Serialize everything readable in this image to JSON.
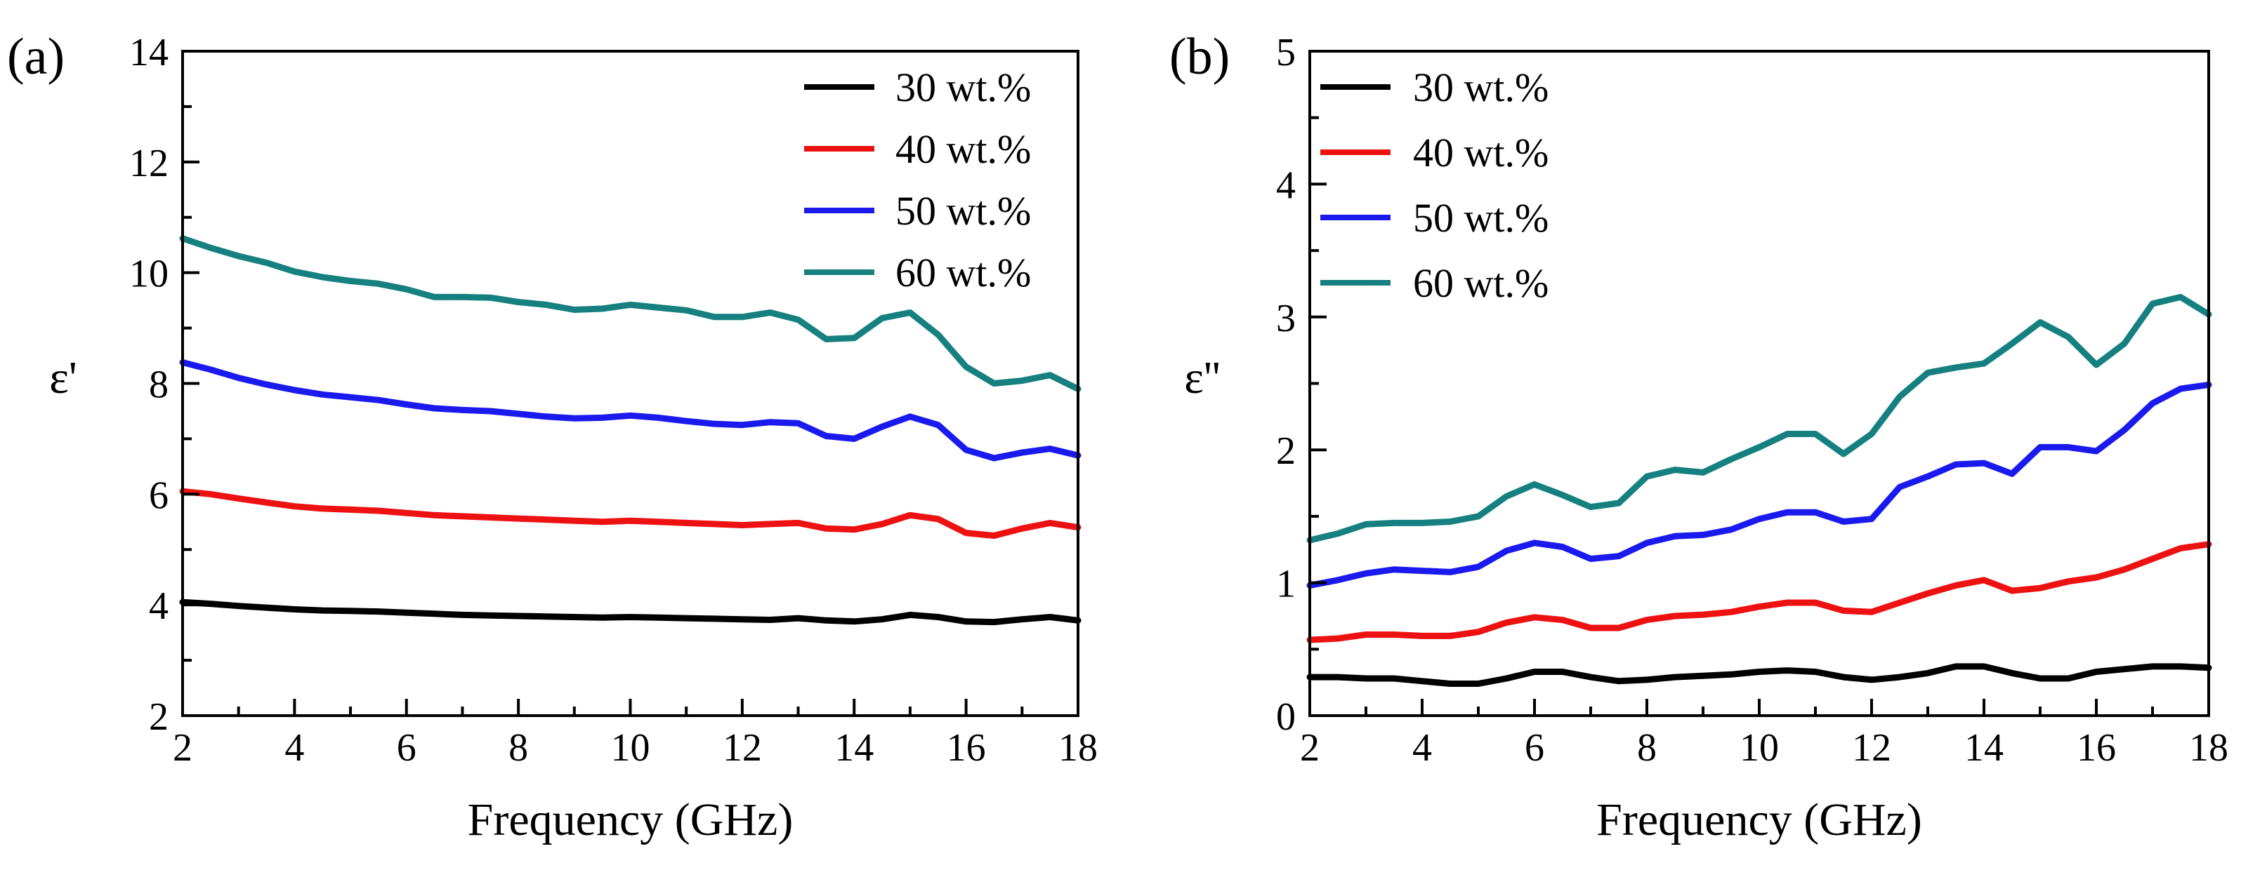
{
  "figure": {
    "colors": {
      "30 wt.%": "#000000",
      "40 wt.%": "#ee1111",
      "50 wt.%": "#1a1aee",
      "60 wt.%": "#168080"
    }
  },
  "chart_data": [
    {
      "type": "line",
      "panel_label": "(a)",
      "title": "",
      "xlabel": "Frequency (GHz)",
      "ylabel": "ε'",
      "xlim": [
        2,
        18
      ],
      "ylim": [
        2,
        14
      ],
      "xticks": [
        2,
        4,
        6,
        8,
        10,
        12,
        14,
        16,
        18
      ],
      "yticks": [
        2,
        4,
        6,
        8,
        10,
        12,
        14
      ],
      "legend_position": "top-right",
      "series": [
        {
          "name": "30 wt.%",
          "x": [
            2,
            2.5,
            3,
            3.5,
            4,
            4.5,
            5,
            5.5,
            6,
            6.5,
            7,
            7.5,
            8,
            8.5,
            9,
            9.5,
            10,
            10.5,
            11,
            11.5,
            12,
            12.5,
            13,
            13.5,
            14,
            14.5,
            15,
            15.5,
            16,
            16.5,
            17,
            17.5,
            18
          ],
          "y": [
            4.05,
            4.02,
            3.98,
            3.95,
            3.92,
            3.9,
            3.89,
            3.88,
            3.86,
            3.84,
            3.82,
            3.81,
            3.8,
            3.79,
            3.78,
            3.77,
            3.78,
            3.77,
            3.76,
            3.75,
            3.74,
            3.73,
            3.76,
            3.72,
            3.7,
            3.74,
            3.82,
            3.78,
            3.7,
            3.69,
            3.74,
            3.78,
            3.72
          ]
        },
        {
          "name": "40 wt.%",
          "x": [
            2,
            2.5,
            3,
            3.5,
            4,
            4.5,
            5,
            5.5,
            6,
            6.5,
            7,
            7.5,
            8,
            8.5,
            9,
            9.5,
            10,
            10.5,
            11,
            11.5,
            12,
            12.5,
            13,
            13.5,
            14,
            14.5,
            15,
            15.5,
            16,
            16.5,
            17,
            17.5,
            18
          ],
          "y": [
            6.05,
            6.0,
            5.92,
            5.85,
            5.78,
            5.74,
            5.72,
            5.7,
            5.66,
            5.62,
            5.6,
            5.58,
            5.56,
            5.54,
            5.52,
            5.5,
            5.52,
            5.5,
            5.48,
            5.46,
            5.44,
            5.46,
            5.48,
            5.38,
            5.36,
            5.46,
            5.62,
            5.55,
            5.3,
            5.25,
            5.38,
            5.48,
            5.4
          ]
        },
        {
          "name": "50 wt.%",
          "x": [
            2,
            2.5,
            3,
            3.5,
            4,
            4.5,
            5,
            5.5,
            6,
            6.5,
            7,
            7.5,
            8,
            8.5,
            9,
            9.5,
            10,
            10.5,
            11,
            11.5,
            12,
            12.5,
            13,
            13.5,
            14,
            14.5,
            15,
            15.5,
            16,
            16.5,
            17,
            17.5,
            18
          ],
          "y": [
            8.38,
            8.25,
            8.1,
            7.98,
            7.88,
            7.8,
            7.75,
            7.7,
            7.62,
            7.55,
            7.52,
            7.5,
            7.45,
            7.4,
            7.37,
            7.38,
            7.42,
            7.38,
            7.32,
            7.27,
            7.25,
            7.3,
            7.28,
            7.05,
            7.0,
            7.22,
            7.4,
            7.25,
            6.8,
            6.65,
            6.75,
            6.82,
            6.7
          ]
        },
        {
          "name": "60 wt.%",
          "x": [
            2,
            2.5,
            3,
            3.5,
            4,
            4.5,
            5,
            5.5,
            6,
            6.5,
            7,
            7.5,
            8,
            8.5,
            9,
            9.5,
            10,
            10.5,
            11,
            11.5,
            12,
            12.5,
            13,
            13.5,
            14,
            14.5,
            15,
            15.5,
            16,
            16.5,
            17,
            17.5,
            18
          ],
          "y": [
            10.62,
            10.45,
            10.3,
            10.18,
            10.02,
            9.92,
            9.85,
            9.8,
            9.7,
            9.56,
            9.56,
            9.55,
            9.47,
            9.42,
            9.33,
            9.35,
            9.42,
            9.37,
            9.32,
            9.2,
            9.2,
            9.28,
            9.15,
            8.8,
            8.82,
            9.18,
            9.28,
            8.88,
            8.3,
            8.0,
            8.05,
            8.15,
            7.9
          ]
        }
      ]
    },
    {
      "type": "line",
      "panel_label": "(b)",
      "title": "",
      "xlabel": "Frequency (GHz)",
      "ylabel": "ε''",
      "xlim": [
        2,
        18
      ],
      "ylim": [
        0,
        5
      ],
      "xticks": [
        2,
        4,
        6,
        8,
        10,
        12,
        14,
        16,
        18
      ],
      "yticks": [
        0,
        1,
        2,
        3,
        4,
        5
      ],
      "legend_position": "top-left",
      "series": [
        {
          "name": "30 wt.%",
          "x": [
            2,
            2.5,
            3,
            3.5,
            4,
            4.5,
            5,
            5.5,
            6,
            6.5,
            7,
            7.5,
            8,
            8.5,
            9,
            9.5,
            10,
            10.5,
            11,
            11.5,
            12,
            12.5,
            13,
            13.5,
            14,
            14.5,
            15,
            15.5,
            16,
            16.5,
            17,
            17.5,
            18
          ],
          "y": [
            0.29,
            0.29,
            0.28,
            0.28,
            0.26,
            0.24,
            0.24,
            0.28,
            0.33,
            0.33,
            0.29,
            0.26,
            0.27,
            0.29,
            0.3,
            0.31,
            0.33,
            0.34,
            0.33,
            0.29,
            0.27,
            0.29,
            0.32,
            0.37,
            0.37,
            0.32,
            0.28,
            0.28,
            0.33,
            0.35,
            0.37,
            0.37,
            0.36
          ]
        },
        {
          "name": "40 wt.%",
          "x": [
            2,
            2.5,
            3,
            3.5,
            4,
            4.5,
            5,
            5.5,
            6,
            6.5,
            7,
            7.5,
            8,
            8.5,
            9,
            9.5,
            10,
            10.5,
            11,
            11.5,
            12,
            12.5,
            13,
            13.5,
            14,
            14.5,
            15,
            15.5,
            16,
            16.5,
            17,
            17.5,
            18
          ],
          "y": [
            0.57,
            0.58,
            0.61,
            0.61,
            0.6,
            0.6,
            0.63,
            0.7,
            0.74,
            0.72,
            0.66,
            0.66,
            0.72,
            0.75,
            0.76,
            0.78,
            0.82,
            0.85,
            0.85,
            0.79,
            0.78,
            0.85,
            0.92,
            0.98,
            1.02,
            0.94,
            0.96,
            1.01,
            1.04,
            1.1,
            1.18,
            1.26,
            1.29
          ]
        },
        {
          "name": "50 wt.%",
          "x": [
            2,
            2.5,
            3,
            3.5,
            4,
            4.5,
            5,
            5.5,
            6,
            6.5,
            7,
            7.5,
            8,
            8.5,
            9,
            9.5,
            10,
            10.5,
            11,
            11.5,
            12,
            12.5,
            13,
            13.5,
            14,
            14.5,
            15,
            15.5,
            16,
            16.5,
            17,
            17.5,
            18
          ],
          "y": [
            0.98,
            1.02,
            1.07,
            1.1,
            1.09,
            1.08,
            1.12,
            1.24,
            1.3,
            1.27,
            1.18,
            1.2,
            1.3,
            1.35,
            1.36,
            1.4,
            1.48,
            1.53,
            1.53,
            1.46,
            1.48,
            1.72,
            1.8,
            1.89,
            1.9,
            1.82,
            2.02,
            2.02,
            1.99,
            2.15,
            2.35,
            2.46,
            2.49
          ]
        },
        {
          "name": "60 wt.%",
          "x": [
            2,
            2.5,
            3,
            3.5,
            4,
            4.5,
            5,
            5.5,
            6,
            6.5,
            7,
            7.5,
            8,
            8.5,
            9,
            9.5,
            10,
            10.5,
            11,
            11.5,
            12,
            12.5,
            13,
            13.5,
            14,
            14.5,
            15,
            15.5,
            16,
            16.5,
            17,
            17.5,
            18
          ],
          "y": [
            1.32,
            1.37,
            1.44,
            1.45,
            1.45,
            1.46,
            1.5,
            1.65,
            1.74,
            1.66,
            1.57,
            1.6,
            1.8,
            1.85,
            1.83,
            1.93,
            2.02,
            2.12,
            2.12,
            1.97,
            2.12,
            2.4,
            2.58,
            2.62,
            2.65,
            2.8,
            2.96,
            2.85,
            2.64,
            2.8,
            3.1,
            3.15,
            3.02
          ]
        }
      ]
    }
  ]
}
